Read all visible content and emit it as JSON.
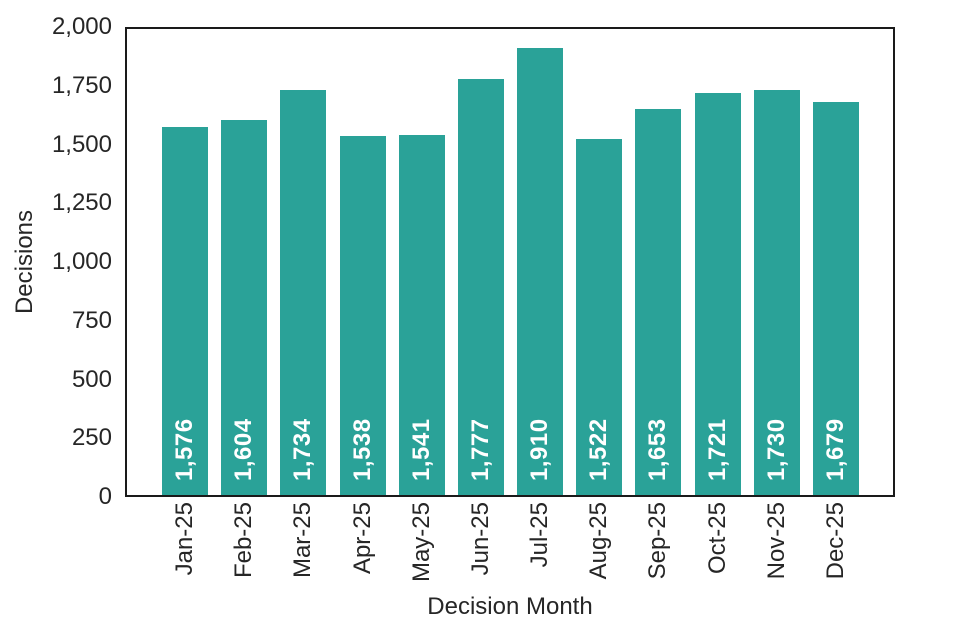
{
  "chart_data": {
    "type": "bar",
    "title": "",
    "xlabel": "Decision Month",
    "ylabel": "Decisions",
    "categories": [
      "Jan-25",
      "Feb-25",
      "Mar-25",
      "Apr-25",
      "May-25",
      "Jun-25",
      "Jul-25",
      "Aug-25",
      "Sep-25",
      "Oct-25",
      "Nov-25",
      "Dec-25"
    ],
    "values": [
      1576,
      1604,
      1734,
      1538,
      1541,
      1777,
      1910,
      1522,
      1653,
      1721,
      1730,
      1679
    ],
    "bar_value_labels": [
      "1,576",
      "1,604",
      "1,734",
      "1,538",
      "1,541",
      "1,777",
      "1,910",
      "1,522",
      "1,653",
      "1,721",
      "1,730",
      "1,679"
    ],
    "ylim": [
      0,
      2000
    ],
    "yticks": [
      0,
      250,
      500,
      750,
      1000,
      1250,
      1500,
      1750,
      2000
    ],
    "ytick_labels": [
      "0",
      "250",
      "500",
      "750",
      "1,000",
      "1,250",
      "1,500",
      "1,750",
      "2,000"
    ],
    "grid": false,
    "legend": null,
    "colors": {
      "bar": "#2aa298",
      "bar_label": "#ffffff",
      "axis_frame": "#1a1a1a",
      "text": "#262626",
      "background": "#ffffff"
    }
  }
}
